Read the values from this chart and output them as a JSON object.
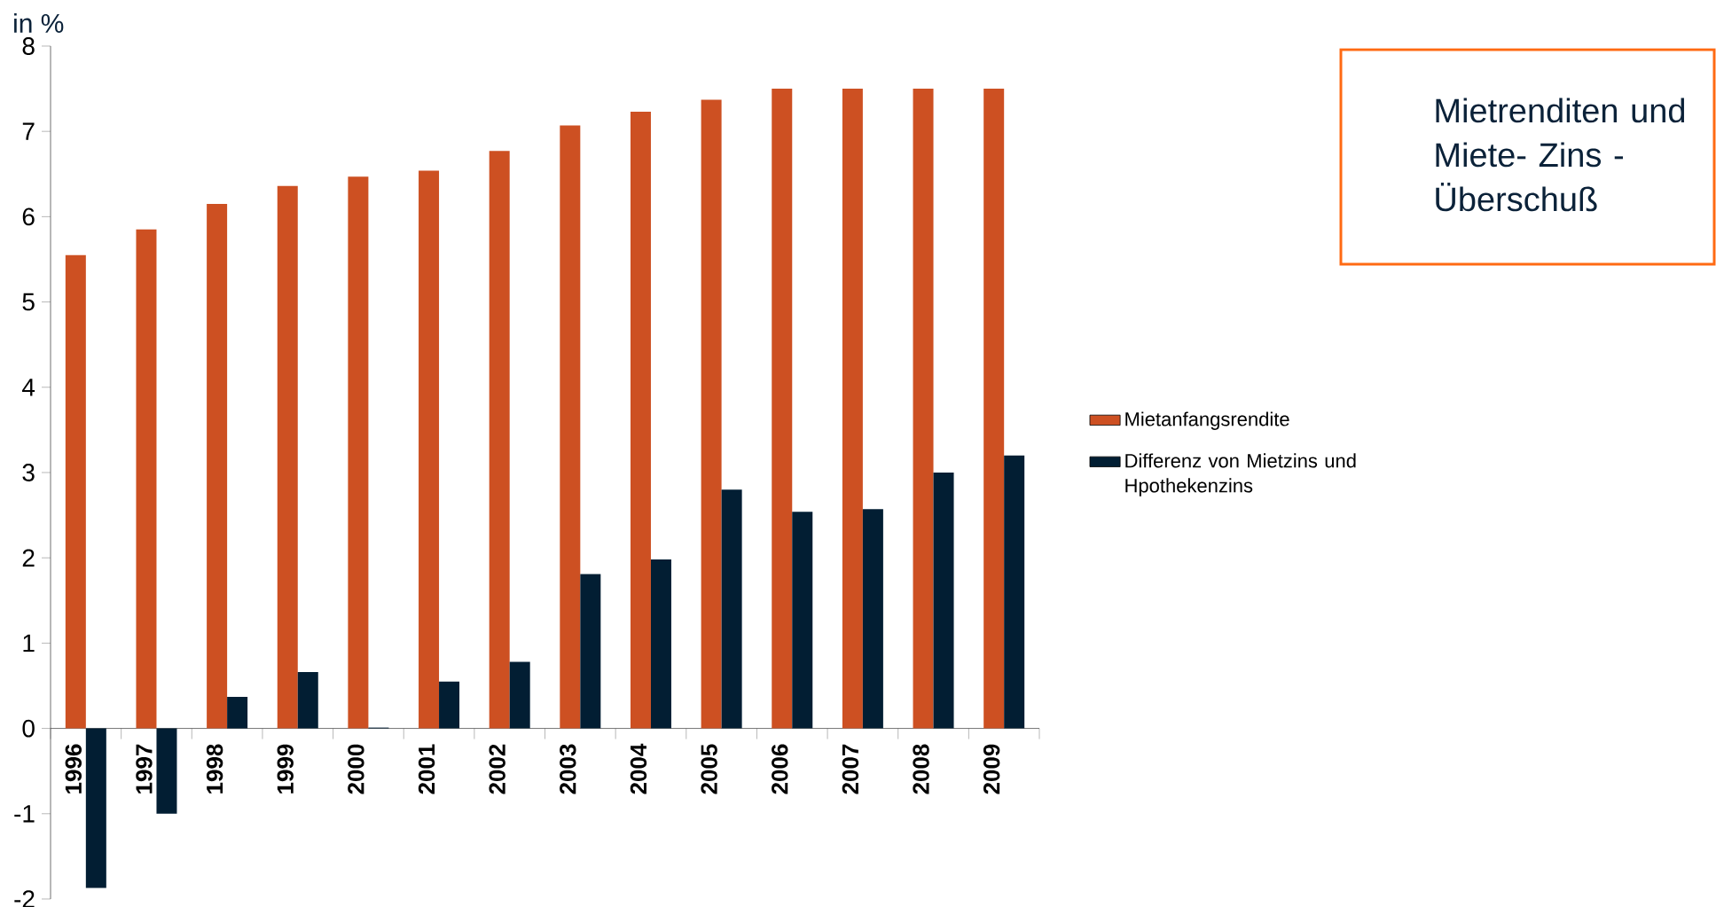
{
  "chart_data": {
    "type": "bar",
    "title": "Mietrenditen und Miete- Zins - Überschuß",
    "ylabel": "in %",
    "categories": [
      "1996",
      "1997",
      "1998",
      "1999",
      "2000",
      "2001",
      "2002",
      "2003",
      "2004",
      "2005",
      "2006",
      "2007",
      "2008",
      "2009"
    ],
    "series": [
      {
        "name": "Mietanfangsrendite",
        "color": "#cd5022",
        "values": [
          5.55,
          5.85,
          6.15,
          6.36,
          6.47,
          6.54,
          6.77,
          7.07,
          7.23,
          7.37,
          7.5,
          7.5,
          7.5,
          7.5
        ]
      },
      {
        "name": "Differenz von Mietzins und Hpothekenzins",
        "color": "#021e33",
        "values": [
          -1.87,
          -1.0,
          0.37,
          0.66,
          0.01,
          0.55,
          0.78,
          1.81,
          1.98,
          2.8,
          2.54,
          2.57,
          3.0,
          3.2
        ]
      }
    ],
    "ylim": [
      -2,
      8
    ],
    "yticks": [
      -2,
      -1,
      0,
      1,
      2,
      3,
      4,
      5,
      6,
      7,
      8
    ],
    "legend": "right"
  }
}
